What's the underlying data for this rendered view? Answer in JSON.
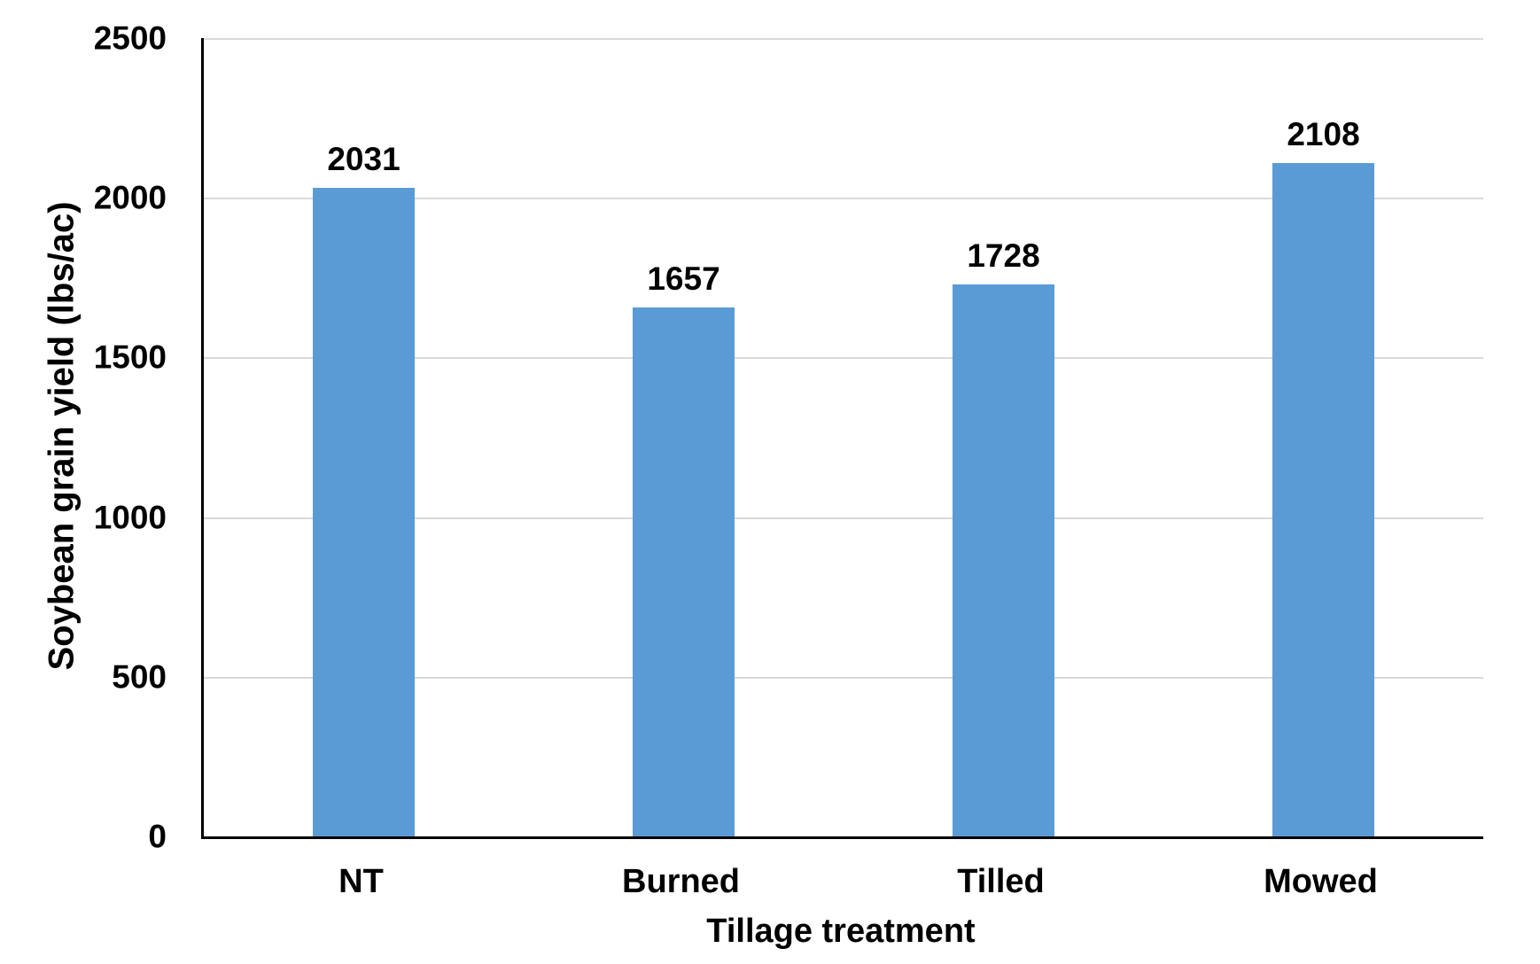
{
  "chart_data": {
    "type": "bar",
    "title": "",
    "categories": [
      "NT",
      "Burned",
      "Tilled",
      "Mowed"
    ],
    "values": [
      2031,
      1657,
      1728,
      2108
    ],
    "data_labels_shown": true,
    "xlabel": "Tillage treatment",
    "ylabel": "Soybean grain yield (lbs/ac)",
    "ylim": [
      0,
      2500
    ],
    "yticks": [
      0,
      500,
      1000,
      1500,
      2000,
      2500
    ],
    "grid": "horizontal-only",
    "legend_position": "none",
    "bar_color": "#5B9BD5",
    "gridline_color": "#D9D9D9",
    "axis_line_color": "#000000",
    "label_color": "#000000",
    "background_color": "#FFFFFF"
  }
}
